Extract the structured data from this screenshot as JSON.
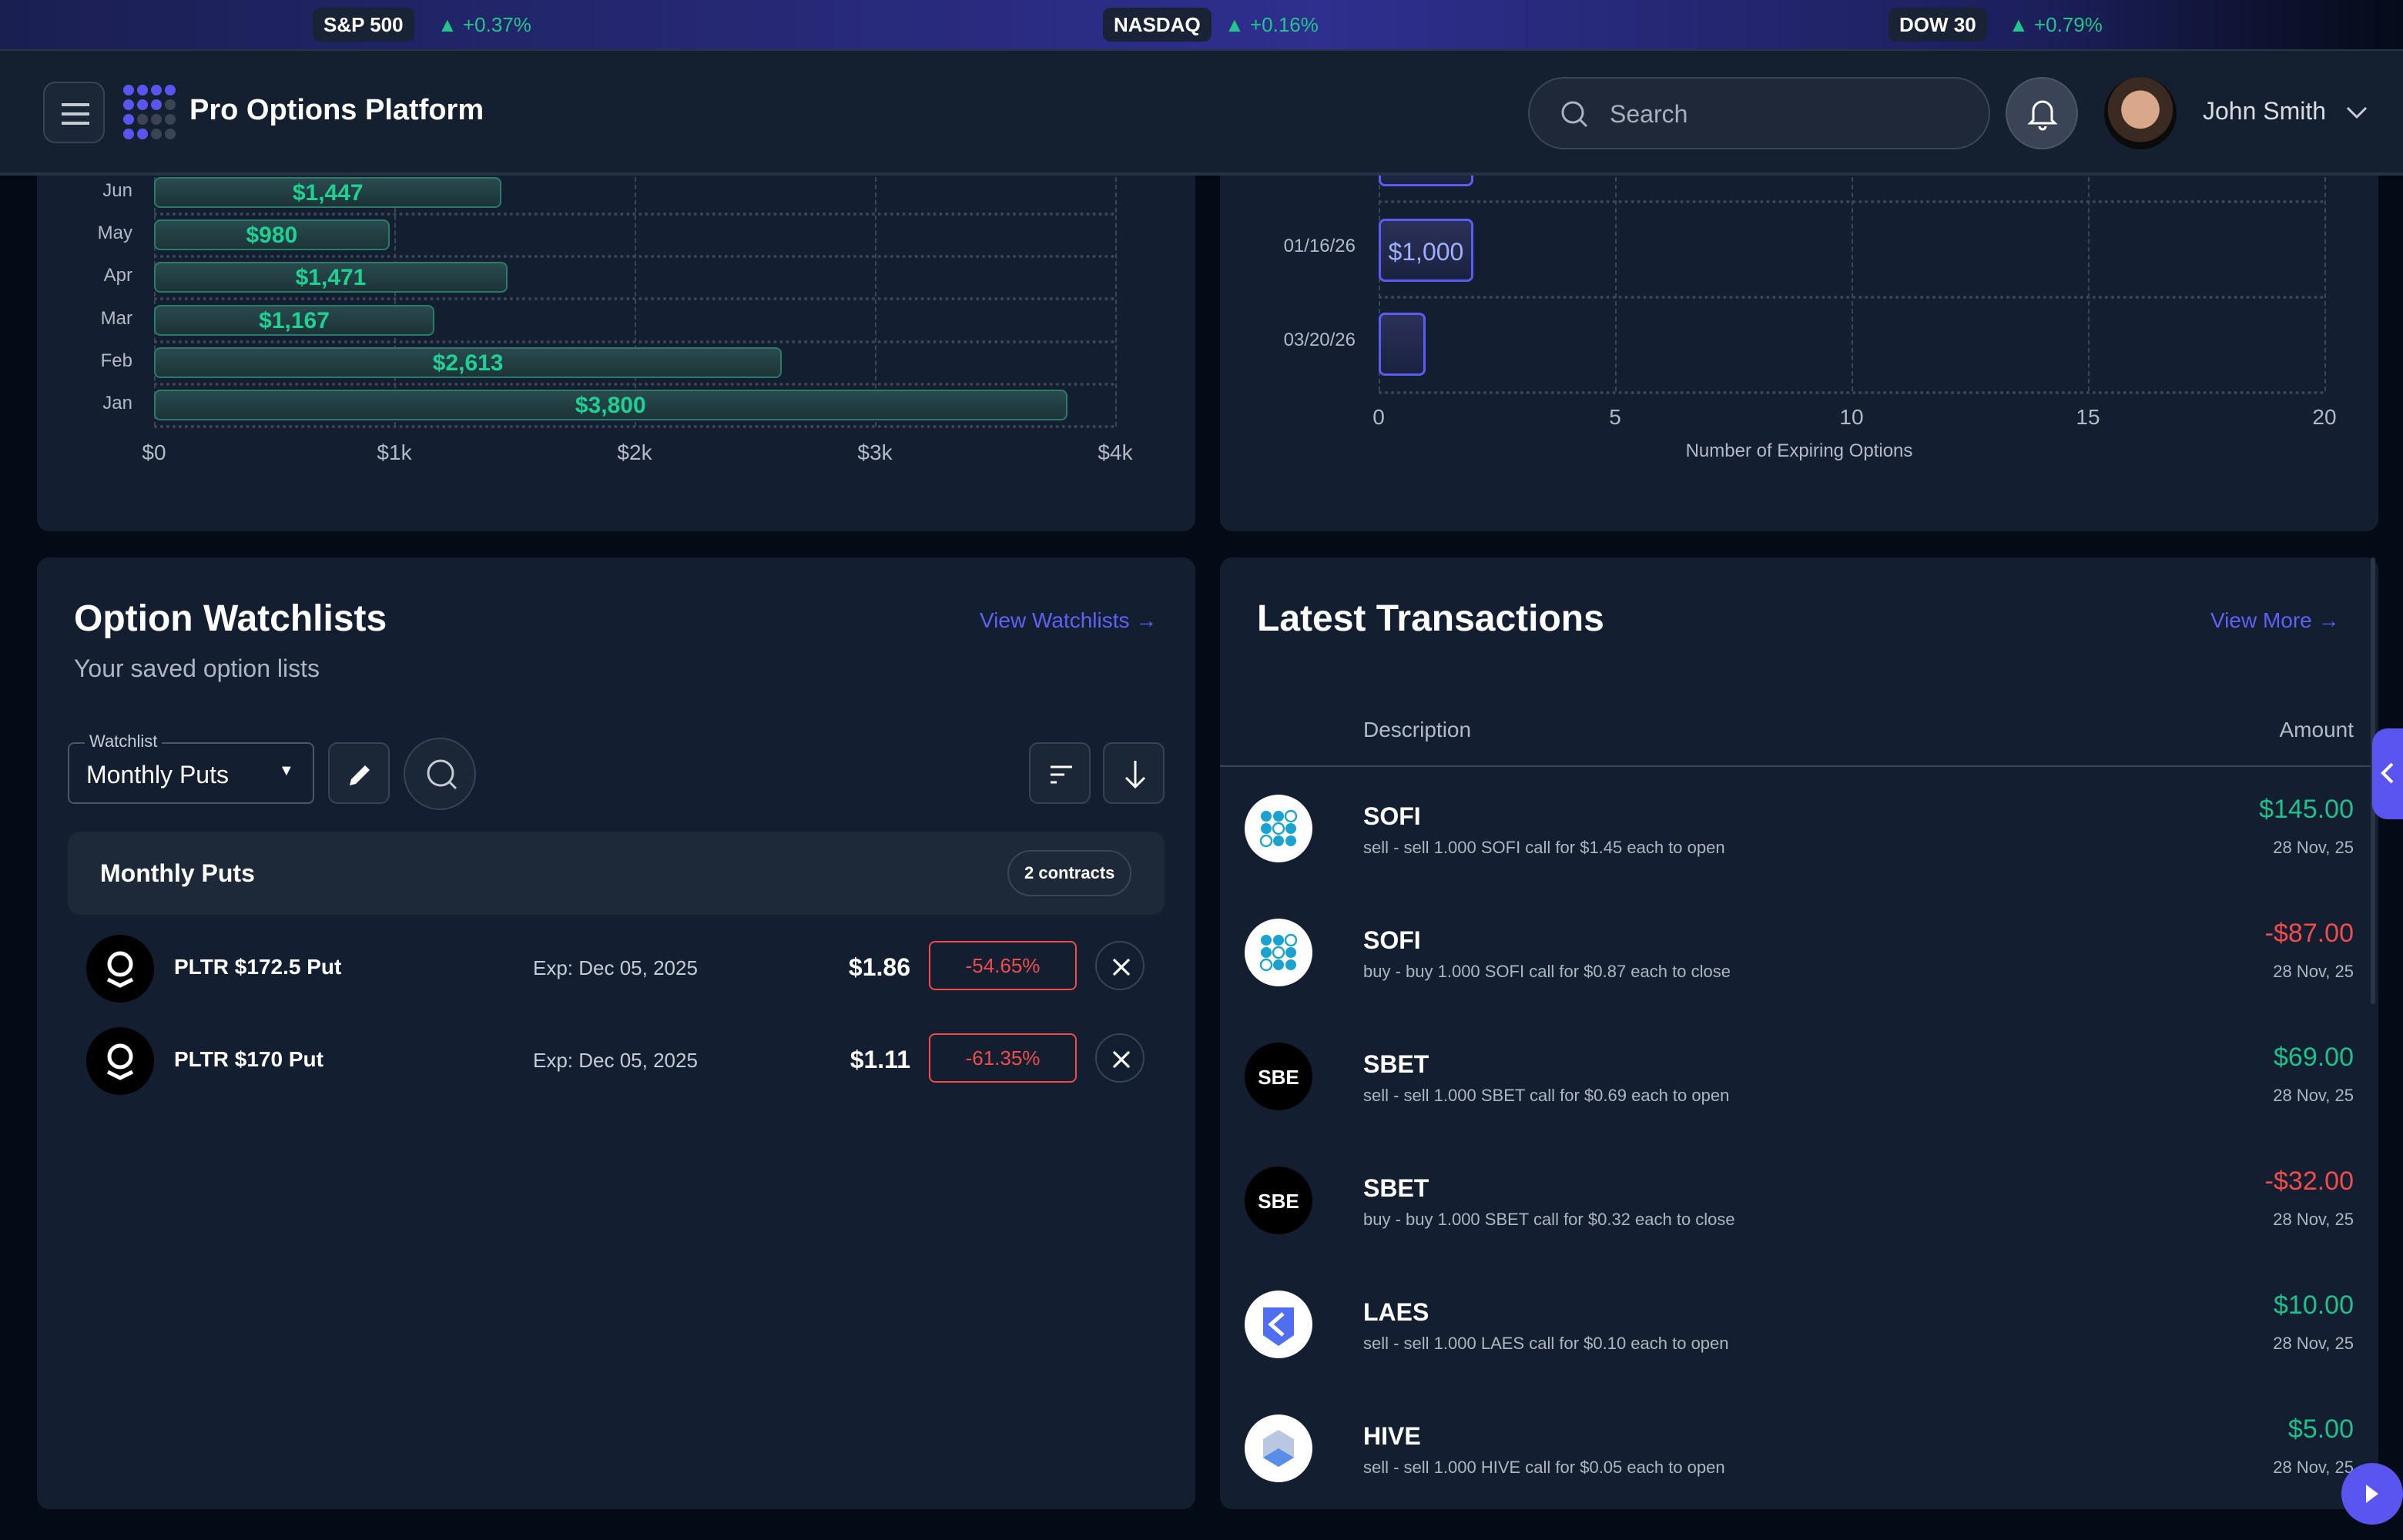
{
  "ticker": [
    {
      "name": "S&P 500",
      "change": "+0.37%"
    },
    {
      "name": "NASDAQ",
      "change": "+0.16%"
    },
    {
      "name": "DOW 30",
      "change": "+0.79%"
    }
  ],
  "header": {
    "title": "Pro Options Platform",
    "search_placeholder": "Search",
    "user_name": "John Smith"
  },
  "colors": {
    "accent": "#5b55f0",
    "positive": "#1fc08a",
    "negative": "#f04c4c",
    "card": "#131f31",
    "background": "#040b16"
  },
  "chart_data": [
    {
      "type": "bar",
      "orientation": "horizontal",
      "categories": [
        "Jun",
        "May",
        "Apr",
        "Mar",
        "Feb",
        "Jan"
      ],
      "values": [
        1447,
        980,
        1471,
        1167,
        2613,
        3800
      ],
      "data_labels": [
        "$1,447",
        "$980",
        "$1,471",
        "$1,167",
        "$2,613",
        "$3,800"
      ],
      "xlim": [
        0,
        4000
      ],
      "xticks": [
        "$0",
        "$1k",
        "$2k",
        "$3k",
        "$4k"
      ],
      "grid": true
    },
    {
      "type": "bar",
      "orientation": "horizontal",
      "categories": [
        "01/16/26",
        "03/20/26"
      ],
      "values": [
        2,
        1
      ],
      "data_labels": [
        "$1,000",
        ""
      ],
      "xlim": [
        0,
        20
      ],
      "xticks": [
        "0",
        "5",
        "10",
        "15",
        "20"
      ],
      "xlabel": "Number of Expiring Options",
      "grid": true
    }
  ],
  "watchlists": {
    "title": "Option Watchlists",
    "subtitle": "Your saved option lists",
    "view_link": "View Watchlists →",
    "select_label": "Watchlist",
    "selected": "Monthly Puts",
    "group_name": "Monthly Puts",
    "count_badge": "2 contracts",
    "rows": [
      {
        "name": "PLTR $172.5 Put",
        "exp": "Exp: Dec 05, 2025",
        "price": "$1.86",
        "change": "-54.65%"
      },
      {
        "name": "PLTR $170 Put",
        "exp": "Exp: Dec 05, 2025",
        "price": "$1.11",
        "change": "-61.35%"
      }
    ]
  },
  "transactions": {
    "title": "Latest Transactions",
    "view_link": "View More →",
    "col_description": "Description",
    "col_amount": "Amount",
    "rows": [
      {
        "symbol": "SOFI",
        "logo": "SOFI",
        "desc": "sell - sell 1.000 SOFI call for $1.45 each to open",
        "amount": "$145.00",
        "date": "28 Nov, 25",
        "sign": "pos"
      },
      {
        "symbol": "SOFI",
        "logo": "SOFI",
        "desc": "buy - buy 1.000 SOFI call for $0.87 each to close",
        "amount": "-$87.00",
        "date": "28 Nov, 25",
        "sign": "neg"
      },
      {
        "symbol": "SBET",
        "logo": "SBE",
        "desc": "sell - sell 1.000 SBET call for $0.69 each to open",
        "amount": "$69.00",
        "date": "28 Nov, 25",
        "sign": "pos"
      },
      {
        "symbol": "SBET",
        "logo": "SBE",
        "desc": "buy - buy 1.000 SBET call for $0.32 each to close",
        "amount": "-$32.00",
        "date": "28 Nov, 25",
        "sign": "neg"
      },
      {
        "symbol": "LAES",
        "logo": "LAES",
        "desc": "sell - sell 1.000 LAES call for $0.10 each to open",
        "amount": "$10.00",
        "date": "28 Nov, 25",
        "sign": "pos"
      },
      {
        "symbol": "HIVE",
        "logo": "HIVE",
        "desc": "sell - sell 1.000 HIVE call for $0.05 each to open",
        "amount": "$5.00",
        "date": "28 Nov, 25",
        "sign": "pos"
      }
    ]
  }
}
